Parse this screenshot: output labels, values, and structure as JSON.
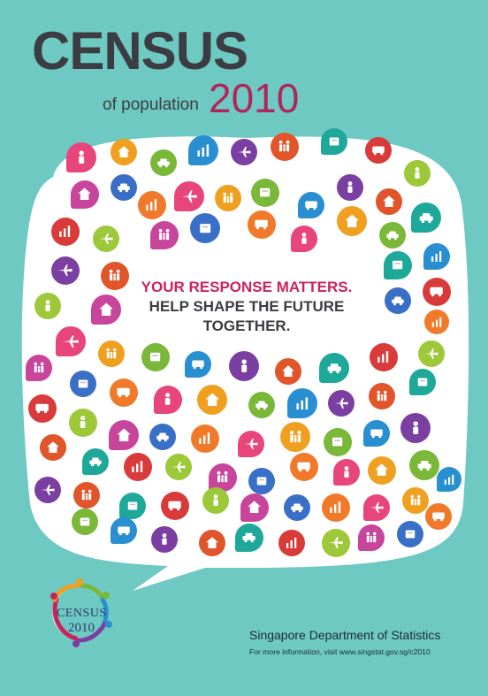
{
  "title": {
    "main": "CENSUS",
    "sub": "of population",
    "year": "2010"
  },
  "tagline": {
    "line1": "YOUR RESPONSE MATTERS.",
    "line2": "HELP SHAPE THE FUTURE",
    "line3": "TOGETHER."
  },
  "logo": {
    "line1": "CENSUS",
    "line2": "2010"
  },
  "footer": {
    "department": "Singapore Department of Statistics",
    "more_info": "For more information, visit www.singstat.gov.sg/c2010"
  },
  "colors": {
    "background": "#6ec9c2",
    "bubble": "#ffffff",
    "title_dark": "#3c3d42",
    "title_accent": "#b0265a",
    "tagline_accent": "#c8245c"
  },
  "icons": [
    "person-icon",
    "house-icon",
    "family-icon",
    "airplane-icon",
    "car-icon",
    "bus-icon",
    "train-icon",
    "chart-icon",
    "laptop-icon",
    "book-icon",
    "money-icon",
    "factory-icon",
    "tree-icon",
    "bicycle-icon",
    "ship-icon",
    "clock-icon",
    "scale-icon",
    "globe-icon",
    "gear-icon",
    "building-icon"
  ]
}
